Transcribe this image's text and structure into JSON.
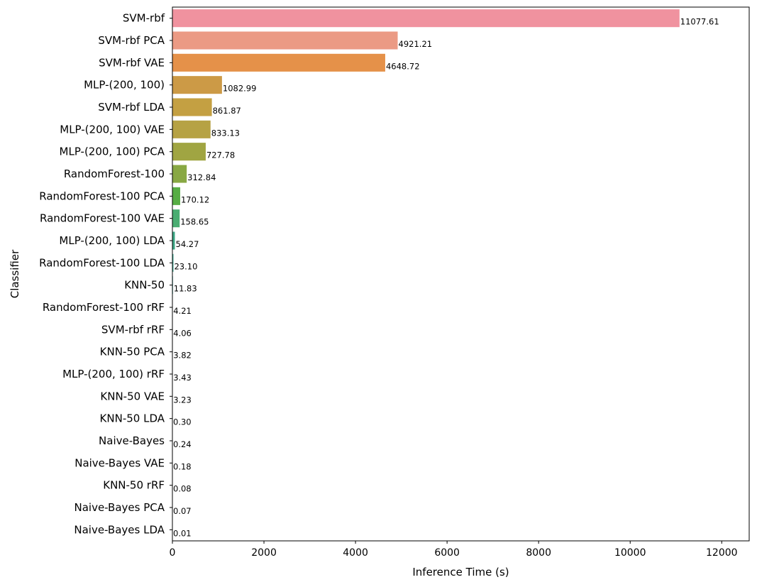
{
  "chart_data": {
    "type": "bar",
    "orientation": "horizontal",
    "title": "",
    "xlabel": "Inference Time (s)",
    "ylabel": "Classifier",
    "xlim": [
      0,
      12600
    ],
    "xticks": [
      0,
      2000,
      4000,
      6000,
      8000,
      10000,
      12000
    ],
    "grid": false,
    "legend": "none",
    "categories": [
      "SVM-rbf",
      "SVM-rbf PCA",
      "SVM-rbf VAE",
      "MLP-(200, 100)",
      "SVM-rbf LDA",
      "MLP-(200, 100) VAE",
      "MLP-(200, 100) PCA",
      "RandomForest-100",
      "RandomForest-100 PCA",
      "RandomForest-100 VAE",
      "MLP-(200, 100) LDA",
      "RandomForest-100 LDA",
      "KNN-50",
      "RandomForest-100 rRF",
      "SVM-rbf rRF",
      "KNN-50 PCA",
      "MLP-(200, 100) rRF",
      "KNN-50 VAE",
      "KNN-50 LDA",
      "Naive-Bayes",
      "Naive-Bayes VAE",
      "KNN-50 rRF",
      "Naive-Bayes PCA",
      "Naive-Bayes LDA"
    ],
    "values": [
      11077.61,
      4921.21,
      4648.72,
      1082.99,
      861.87,
      833.13,
      727.78,
      312.84,
      170.12,
      158.65,
      54.27,
      23.1,
      11.83,
      4.21,
      4.06,
      3.82,
      3.43,
      3.23,
      0.3,
      0.24,
      0.18,
      0.08,
      0.07,
      0.01
    ],
    "value_labels": [
      "11077.61",
      "4921.21",
      "4648.72",
      "1082.99",
      "861.87",
      "833.13",
      "727.78",
      "312.84",
      "170.12",
      "158.65",
      "54.27",
      "23.10",
      "11.83",
      "4.21",
      "4.06",
      "3.82",
      "3.43",
      "3.23",
      "0.30",
      "0.24",
      "0.18",
      "0.08",
      "0.07",
      "0.01"
    ],
    "colors": [
      "#f0929f",
      "#eb9a84",
      "#e59149",
      "#cc9a46",
      "#c4a042",
      "#b6a244",
      "#a0a542",
      "#88a843",
      "#56ad44",
      "#4aad72",
      "#3da886",
      "#3fa893",
      "#3fa79d",
      "#3fa6a8",
      "#40a4b4",
      "#43a3c2",
      "#4fa0d3",
      "#749ae8",
      "#9994ec",
      "#b88eea",
      "#d086e6",
      "#e27cd7",
      "#ee7dc0",
      "#f286ae"
    ]
  }
}
